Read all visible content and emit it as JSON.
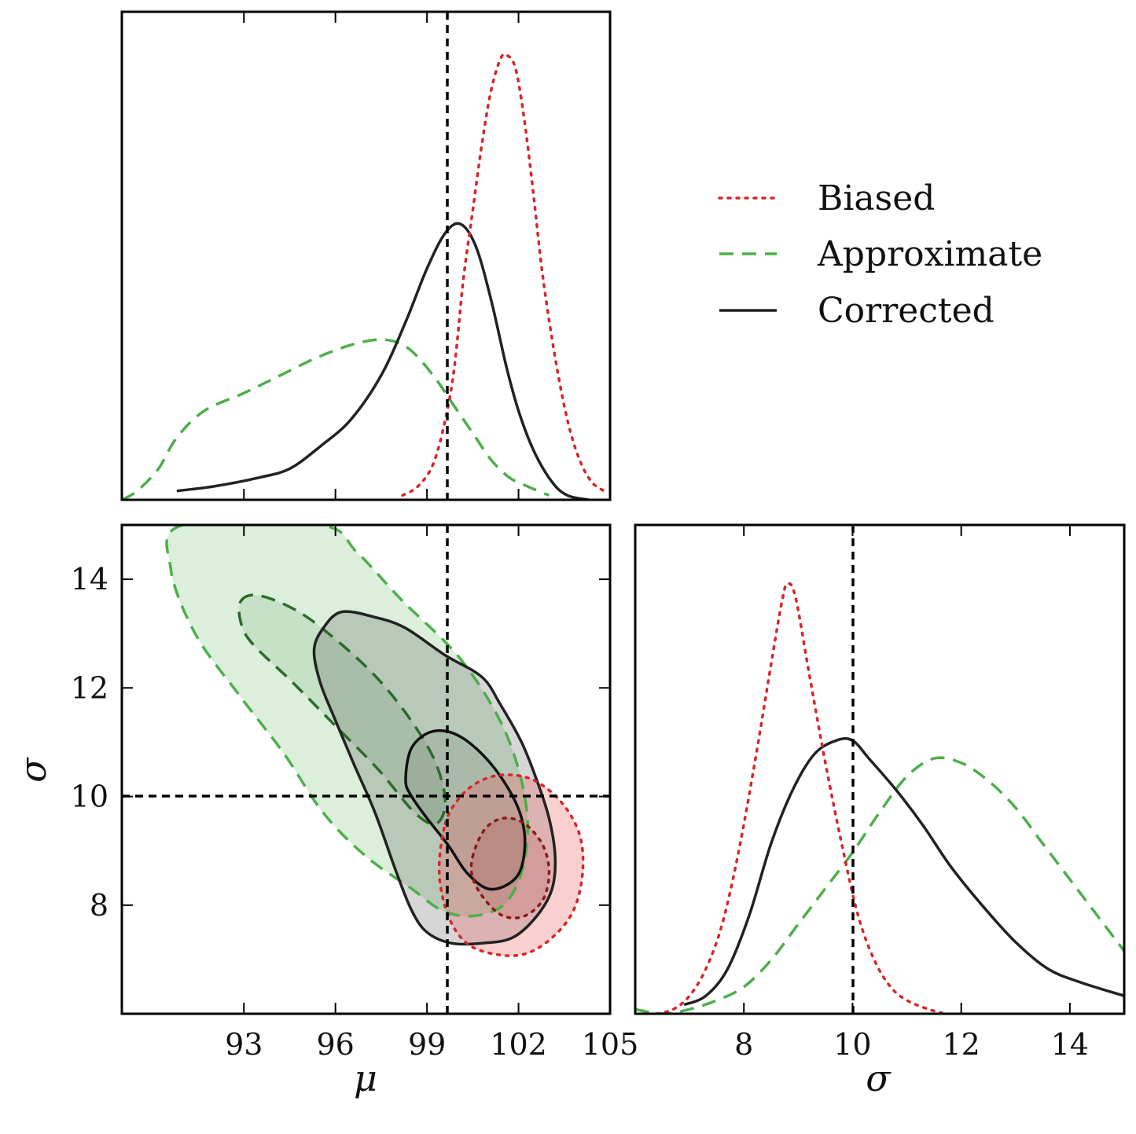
{
  "chart_data": {
    "type": "corner",
    "colors": {
      "biased": "#d62728",
      "approximate": "#4daf4a",
      "corrected": "#222222",
      "truth": "#000000"
    },
    "legend": {
      "placement": "top-right",
      "entries": [
        {
          "key": "biased",
          "label": "Biased",
          "style": "dotted"
        },
        {
          "key": "approximate",
          "label": "Approximate",
          "style": "dashed"
        },
        {
          "key": "corrected",
          "label": "Corrected",
          "style": "solid"
        }
      ]
    },
    "truth": {
      "mu": 100,
      "sigma": 10
    },
    "mu_axis": {
      "label": "μ",
      "range": [
        89,
        105
      ],
      "ticks": [
        93,
        96,
        99,
        102,
        105
      ]
    },
    "sigma_axis": {
      "label": "σ",
      "range": [
        6,
        15
      ],
      "ticks": [
        8,
        10,
        12,
        14
      ]
    },
    "mu_marginal": {
      "biased": [
        [
          98.2,
          0.01
        ],
        [
          98.7,
          0.03
        ],
        [
          99.2,
          0.08
        ],
        [
          99.6,
          0.18
        ],
        [
          99.9,
          0.3
        ],
        [
          100.2,
          0.5
        ],
        [
          100.5,
          0.65
        ],
        [
          100.8,
          0.8
        ],
        [
          101.1,
          0.92
        ],
        [
          101.4,
          0.99
        ],
        [
          101.6,
          1.0
        ],
        [
          101.9,
          0.97
        ],
        [
          102.2,
          0.85
        ],
        [
          102.5,
          0.68
        ],
        [
          102.8,
          0.5
        ],
        [
          103.2,
          0.32
        ],
        [
          103.6,
          0.18
        ],
        [
          104.0,
          0.09
        ],
        [
          104.4,
          0.04
        ],
        [
          104.8,
          0.02
        ]
      ],
      "approximate": [
        [
          89.0,
          0.0
        ],
        [
          89.5,
          0.02
        ],
        [
          90.2,
          0.07
        ],
        [
          90.8,
          0.14
        ],
        [
          91.7,
          0.2
        ],
        [
          93.0,
          0.24
        ],
        [
          94.2,
          0.28
        ],
        [
          95.4,
          0.32
        ],
        [
          96.6,
          0.35
        ],
        [
          97.6,
          0.36
        ],
        [
          98.4,
          0.34
        ],
        [
          99.2,
          0.28
        ],
        [
          99.8,
          0.22
        ],
        [
          100.5,
          0.15
        ],
        [
          101.1,
          0.09
        ],
        [
          101.7,
          0.05
        ],
        [
          102.3,
          0.03
        ],
        [
          103.0,
          0.01
        ]
      ],
      "corrected": [
        [
          90.8,
          0.02
        ],
        [
          92.0,
          0.03
        ],
        [
          93.5,
          0.05
        ],
        [
          94.5,
          0.07
        ],
        [
          95.5,
          0.12
        ],
        [
          96.5,
          0.18
        ],
        [
          97.5,
          0.28
        ],
        [
          98.3,
          0.4
        ],
        [
          99.0,
          0.52
        ],
        [
          99.6,
          0.6
        ],
        [
          100.1,
          0.62
        ],
        [
          100.6,
          0.57
        ],
        [
          101.1,
          0.45
        ],
        [
          101.6,
          0.3
        ],
        [
          102.0,
          0.2
        ],
        [
          102.5,
          0.11
        ],
        [
          103.1,
          0.04
        ],
        [
          103.6,
          0.01
        ],
        [
          104.3,
          0.0
        ]
      ]
    },
    "sigma_marginal": {
      "biased": [
        [
          6.4,
          0.0
        ],
        [
          6.7,
          0.01
        ],
        [
          7.0,
          0.04
        ],
        [
          7.3,
          0.1
        ],
        [
          7.6,
          0.2
        ],
        [
          7.9,
          0.36
        ],
        [
          8.2,
          0.56
        ],
        [
          8.5,
          0.78
        ],
        [
          8.7,
          0.92
        ],
        [
          8.8,
          0.96
        ],
        [
          8.95,
          0.93
        ],
        [
          9.2,
          0.76
        ],
        [
          9.5,
          0.56
        ],
        [
          9.8,
          0.38
        ],
        [
          10.1,
          0.22
        ],
        [
          10.4,
          0.12
        ],
        [
          10.7,
          0.06
        ],
        [
          11.0,
          0.03
        ],
        [
          11.4,
          0.01
        ],
        [
          11.7,
          0.0
        ]
      ],
      "approximate": [
        [
          6.0,
          0.01
        ],
        [
          6.5,
          0.0
        ],
        [
          7.0,
          0.01
        ],
        [
          7.5,
          0.03
        ],
        [
          8.0,
          0.06
        ],
        [
          8.5,
          0.12
        ],
        [
          9.0,
          0.2
        ],
        [
          9.5,
          0.28
        ],
        [
          10.0,
          0.36
        ],
        [
          10.5,
          0.45
        ],
        [
          11.0,
          0.53
        ],
        [
          11.5,
          0.57
        ],
        [
          12.0,
          0.56
        ],
        [
          12.5,
          0.52
        ],
        [
          13.0,
          0.46
        ],
        [
          13.5,
          0.38
        ],
        [
          14.0,
          0.3
        ],
        [
          14.5,
          0.22
        ],
        [
          15.0,
          0.14
        ]
      ],
      "corrected": [
        [
          6.9,
          0.02
        ],
        [
          7.3,
          0.04
        ],
        [
          7.7,
          0.1
        ],
        [
          8.1,
          0.22
        ],
        [
          8.5,
          0.38
        ],
        [
          8.9,
          0.5
        ],
        [
          9.3,
          0.58
        ],
        [
          9.7,
          0.61
        ],
        [
          10.0,
          0.61
        ],
        [
          10.3,
          0.57
        ],
        [
          10.8,
          0.5
        ],
        [
          11.3,
          0.42
        ],
        [
          11.8,
          0.33
        ],
        [
          12.4,
          0.24
        ],
        [
          13.0,
          0.16
        ],
        [
          13.6,
          0.1
        ],
        [
          14.2,
          0.07
        ],
        [
          15.0,
          0.04
        ]
      ]
    },
    "joint_contours": {
      "approximate": {
        "outer": [
          [
            91.0,
            15.0
          ],
          [
            90.6,
            14.2
          ],
          [
            91.4,
            13.0
          ],
          [
            92.8,
            11.9
          ],
          [
            94.3,
            10.8
          ],
          [
            95.6,
            9.7
          ],
          [
            97.0,
            8.9
          ],
          [
            98.5,
            8.3
          ],
          [
            99.5,
            7.9
          ],
          [
            100.5,
            7.8
          ],
          [
            101.5,
            8.0
          ],
          [
            102.1,
            8.6
          ],
          [
            102.3,
            9.5
          ],
          [
            102.0,
            10.5
          ],
          [
            101.3,
            11.5
          ],
          [
            100.0,
            12.6
          ],
          [
            98.2,
            13.6
          ],
          [
            96.7,
            14.5
          ],
          [
            95.5,
            15.0
          ]
        ],
        "inner": [
          [
            92.9,
            13.6
          ],
          [
            93.5,
            13.7
          ],
          [
            94.8,
            13.4
          ],
          [
            96.2,
            12.8
          ],
          [
            97.5,
            12.1
          ],
          [
            98.6,
            11.3
          ],
          [
            99.3,
            10.6
          ],
          [
            99.6,
            9.9
          ],
          [
            99.3,
            9.5
          ],
          [
            98.6,
            9.7
          ],
          [
            97.4,
            10.5
          ],
          [
            96.0,
            11.3
          ],
          [
            94.6,
            12.1
          ],
          [
            93.3,
            12.8
          ],
          [
            92.9,
            13.2
          ]
        ]
      },
      "corrected": {
        "outer": [
          [
            95.3,
            12.7
          ],
          [
            95.6,
            13.1
          ],
          [
            96.2,
            13.4
          ],
          [
            97.3,
            13.3
          ],
          [
            98.3,
            13.1
          ],
          [
            99.6,
            12.6
          ],
          [
            100.8,
            12.2
          ],
          [
            101.4,
            11.7
          ],
          [
            102.1,
            11.0
          ],
          [
            102.6,
            10.3
          ],
          [
            103.0,
            9.6
          ],
          [
            103.2,
            8.9
          ],
          [
            103.1,
            8.3
          ],
          [
            102.6,
            7.8
          ],
          [
            101.8,
            7.4
          ],
          [
            100.8,
            7.3
          ],
          [
            99.8,
            7.3
          ],
          [
            99.0,
            7.5
          ],
          [
            98.5,
            7.9
          ],
          [
            98.0,
            8.6
          ],
          [
            97.3,
            9.7
          ],
          [
            96.6,
            10.6
          ],
          [
            96.0,
            11.4
          ],
          [
            95.5,
            12.1
          ]
        ],
        "inner": [
          [
            98.3,
            10.3
          ],
          [
            98.5,
            10.9
          ],
          [
            99.2,
            11.2
          ],
          [
            100.1,
            11.1
          ],
          [
            101.1,
            10.6
          ],
          [
            101.9,
            9.9
          ],
          [
            102.2,
            9.3
          ],
          [
            102.1,
            8.7
          ],
          [
            101.7,
            8.4
          ],
          [
            101.0,
            8.3
          ],
          [
            100.3,
            8.6
          ],
          [
            99.7,
            9.1
          ],
          [
            99.0,
            9.6
          ],
          [
            98.5,
            10.0
          ]
        ]
      },
      "biased": {
        "outer": [
          [
            99.6,
            9.5
          ],
          [
            100.1,
            10.0
          ],
          [
            100.8,
            10.3
          ],
          [
            101.6,
            10.4
          ],
          [
            102.5,
            10.3
          ],
          [
            103.4,
            9.9
          ],
          [
            104.0,
            9.3
          ],
          [
            104.1,
            8.6
          ],
          [
            103.8,
            7.9
          ],
          [
            103.1,
            7.4
          ],
          [
            102.2,
            7.1
          ],
          [
            101.2,
            7.1
          ],
          [
            100.3,
            7.3
          ],
          [
            99.7,
            7.8
          ],
          [
            99.4,
            8.6
          ]
        ],
        "inner": [
          [
            100.5,
            8.9
          ],
          [
            100.9,
            9.4
          ],
          [
            101.5,
            9.6
          ],
          [
            102.2,
            9.5
          ],
          [
            102.8,
            9.1
          ],
          [
            103.0,
            8.6
          ],
          [
            102.8,
            8.1
          ],
          [
            102.2,
            7.8
          ],
          [
            101.5,
            7.8
          ],
          [
            100.9,
            8.1
          ],
          [
            100.5,
            8.5
          ]
        ]
      }
    }
  }
}
